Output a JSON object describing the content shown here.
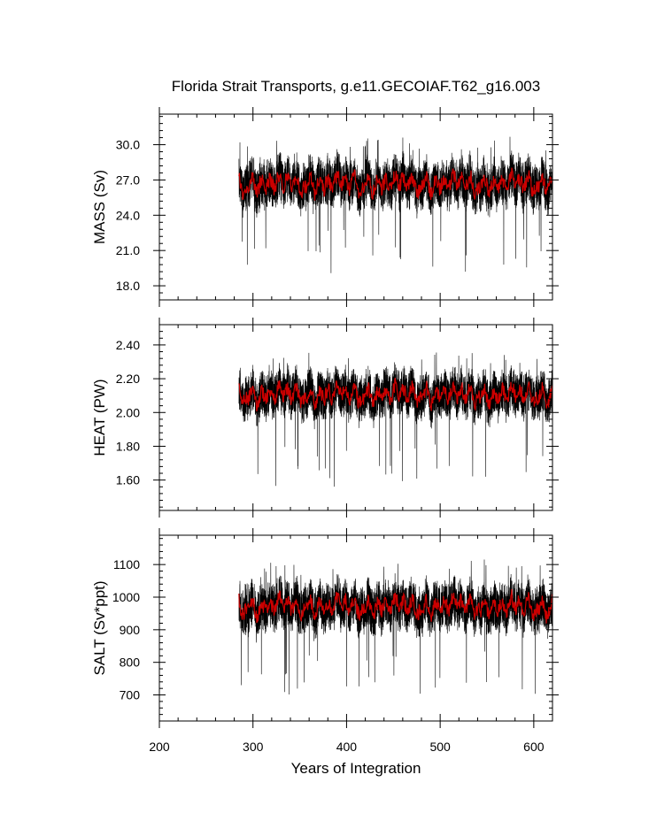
{
  "chart_data": {
    "type": "line",
    "title": "Florida Strait Transports, g.e11.GECOIAF.T62_g16.003",
    "xlabel": "Years of Integration",
    "xlim": [
      200,
      620
    ],
    "xticks": [
      "200",
      "300",
      "400",
      "500",
      "600"
    ],
    "data_start_year": 285,
    "cycle_years": 62,
    "colors": {
      "raw": "#000000",
      "smoothed": "#cc0000"
    },
    "panels": [
      {
        "ylabel": "MASS (Sv)",
        "ylim": [
          16.8,
          32.6
        ],
        "yticks": [
          "18.0",
          "21.0",
          "24.0",
          "27.0",
          "30.0"
        ],
        "base_values": [
          27.2,
          26.4,
          25.9,
          26.2,
          26.5,
          26.3,
          26.9,
          27.3,
          26.6,
          25.8,
          26.1,
          26.8,
          27.0,
          26.6,
          26.2,
          26.7,
          27.1,
          26.8,
          26.3,
          26.5,
          27.2,
          27.6,
          27.0,
          26.4,
          26.9,
          27.3,
          26.8,
          26.2,
          26.6,
          27.1,
          27.4
        ],
        "noise": 1.8,
        "dip": 7.5
      },
      {
        "ylabel": "HEAT (PW)",
        "ylim": [
          1.42,
          2.52
        ],
        "yticks": [
          "1.60",
          "1.80",
          "2.00",
          "2.20",
          "2.40"
        ],
        "base_values": [
          2.15,
          2.1,
          2.05,
          2.07,
          2.09,
          2.08,
          2.12,
          2.15,
          2.1,
          2.04,
          2.06,
          2.11,
          2.13,
          2.1,
          2.07,
          2.11,
          2.14,
          2.12,
          2.08,
          2.09,
          2.14,
          2.17,
          2.13,
          2.09,
          2.12,
          2.15,
          2.12,
          2.07,
          2.1,
          2.14,
          2.16
        ],
        "noise": 0.12,
        "dip": 0.55
      },
      {
        "ylabel": "SALT (Sv*ppt)",
        "ylim": [
          620,
          1190
        ],
        "yticks": [
          "700",
          "800",
          "900",
          "1000",
          "1100"
        ],
        "base_values": [
          990,
          962,
          944,
          955,
          965,
          958,
          980,
          994,
          968,
          940,
          950,
          975,
          984,
          968,
          954,
          972,
          987,
          976,
          958,
          966,
          990,
          1004,
          982,
          960,
          978,
          994,
          975,
          954,
          968,
          986,
          996
        ],
        "noise": 65,
        "dip": 280
      }
    ]
  }
}
